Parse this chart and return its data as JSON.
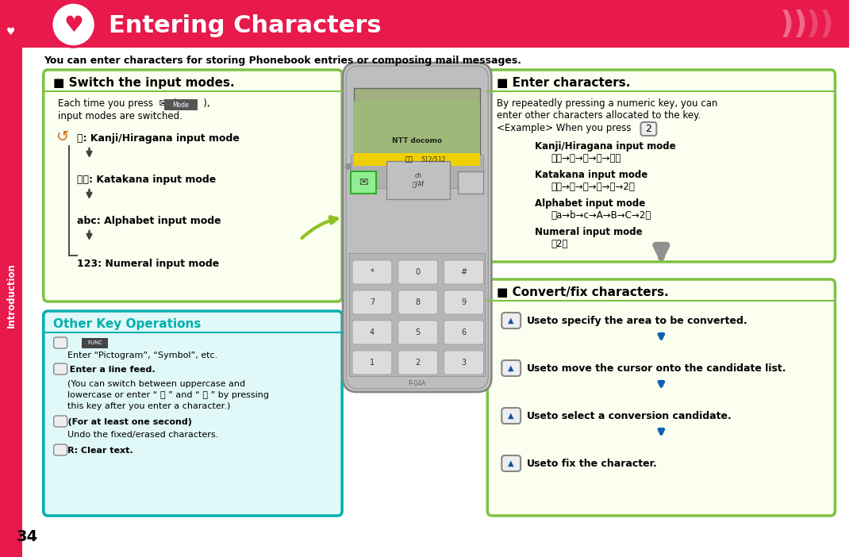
{
  "title": "Entering Characters",
  "title_color": "#FFFFFF",
  "header_bg": "#E8194B",
  "page_bg": "#FFFFFF",
  "page_number": "34",
  "sidebar_text": "Introduction",
  "top_note": "You can enter characters for storing Phonebook entries or composing mail messages.",
  "modes_switch": [
    "漢: Kanji/Hiragana input mode",
    "カナ: Katakana input mode",
    "abc: Alphabet input mode",
    "123: Numeral input mode"
  ],
  "enter_modes": [
    [
      "Kanji/Hiragana input mode",
      "「か→き→く→け→こ」"
    ],
    [
      "Katakana input mode",
      "「カ→キ→ク→ケ→コ→2」"
    ],
    [
      "Alphabet input mode",
      "「a→b→c→A→B→C→2」"
    ],
    [
      "Numeral input mode",
      "「2」"
    ]
  ],
  "other_items": [
    [
      "iⓁ(       ):",
      true
    ],
    [
      "Enter “Pictogram”, “Symbol”, etc.",
      false
    ],
    [
      "✳: Enter a line feed.",
      true
    ],
    [
      "(You can switch between uppercase and",
      false
    ],
    [
      "lowercase or enter “ ゛ ” and “ ゜ ” by pressing",
      false
    ],
    [
      "this key after you enter a character.)",
      false
    ],
    [
      "•: (For at least one second)",
      true
    ],
    [
      "Undo the fixed/erased characters.",
      false
    ],
    [
      "CLR: Clear text.",
      true
    ]
  ],
  "convert_items": [
    "Use   to specify the area to be converted.",
    "Use   to move the cursor onto the candidate list.",
    "Use   to select a conversion candidate.",
    "Use   to fix the character."
  ],
  "header_color": "#E8194B",
  "green_border": "#7DC242",
  "teal_border": "#00AEAE",
  "cream_bg": "#FAFFF0",
  "teal_bg": "#E0F8F8",
  "arrow_gray": "#909090",
  "arrow_blue": "#1060B0",
  "arrow_green": "#90C020"
}
